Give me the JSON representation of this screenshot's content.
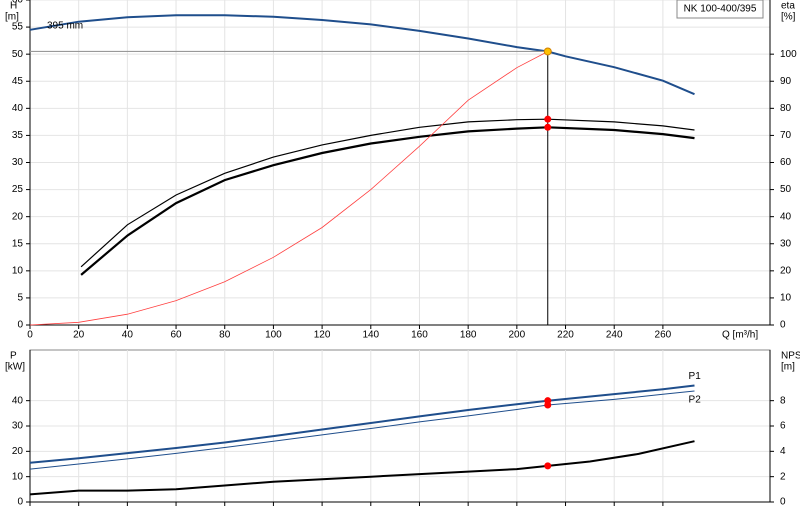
{
  "chart_data": [
    {
      "type": "line",
      "title": "NK 100-400/395",
      "ylabel": "H",
      "yunit": "[m]",
      "y2label": "eta",
      "y2unit": "[%]",
      "xlabel": "Q [m³/h]",
      "xlim": [
        0,
        304
      ],
      "xticks": [
        0,
        20,
        40,
        60,
        80,
        100,
        120,
        140,
        160,
        180,
        200,
        220,
        240,
        260
      ],
      "ylim": [
        0,
        60
      ],
      "yticks": [
        0,
        5,
        10,
        15,
        20,
        25,
        30,
        35,
        40,
        45,
        50,
        55,
        60
      ],
      "y2lim": [
        0,
        120
      ],
      "y2ticks": [
        0,
        10,
        20,
        30,
        40,
        50,
        60,
        70,
        80,
        90,
        100
      ],
      "grid": true,
      "series": [
        {
          "name": "395 mm",
          "color": "#1f4e8c",
          "width": 2,
          "x": [
            0,
            20,
            40,
            60,
            80,
            100,
            120,
            140,
            160,
            180,
            200,
            212.7,
            220,
            240,
            260,
            273
          ],
          "values": [
            54.5,
            56,
            56.8,
            57.2,
            57.2,
            56.9,
            56.3,
            55.5,
            54.3,
            52.9,
            51.3,
            50.5,
            49.6,
            47.6,
            45.1,
            42.6
          ]
        },
        {
          "color": "#000000",
          "width": 1.2,
          "axis": "y2",
          "x": [
            21,
            40,
            60,
            80,
            100,
            120,
            140,
            160,
            180,
            200,
            212.7,
            240,
            260,
            273
          ],
          "values": [
            21.5,
            37,
            48,
            56,
            62,
            66.5,
            70,
            73,
            75,
            75.8,
            76,
            75,
            73.5,
            72
          ]
        },
        {
          "color": "#000000",
          "width": 2.2,
          "axis": "y2",
          "x": [
            21,
            40,
            60,
            80,
            100,
            120,
            140,
            160,
            180,
            200,
            212.7,
            240,
            260,
            273
          ],
          "values": [
            18.5,
            33,
            45,
            53.5,
            59,
            63.5,
            67,
            69.5,
            71.5,
            72.5,
            73,
            72,
            70.5,
            69
          ]
        },
        {
          "color": "#ff4040",
          "width": 0.8,
          "x": [
            0,
            20,
            40,
            60,
            80,
            100,
            120,
            140,
            160,
            180,
            200,
            212.7
          ],
          "values": [
            0,
            0.5,
            2,
            4.5,
            8,
            12.5,
            18,
            25,
            33,
            41.5,
            47.5,
            50.5
          ]
        }
      ],
      "points": [
        {
          "x": 212.7,
          "y": 50.5,
          "color": "#ffc000",
          "guide": true
        },
        {
          "x": 212.7,
          "y": 76,
          "axis": "y2",
          "color": "#ff0000"
        },
        {
          "x": 212.7,
          "y": 73,
          "axis": "y2",
          "color": "#ff0000"
        }
      ]
    },
    {
      "type": "line",
      "ylabel": "P",
      "yunit": "[kW]",
      "y2label": "NPSH",
      "y2unit": "[m]",
      "xlim": [
        0,
        304
      ],
      "ylim": [
        0,
        60
      ],
      "yticks": [
        0,
        10,
        20,
        30,
        40
      ],
      "y2lim": [
        0,
        12
      ],
      "y2ticks": [
        0,
        2,
        4,
        6,
        8
      ],
      "grid": true,
      "series": [
        {
          "name": "P1",
          "color": "#1f4e8c",
          "width": 2,
          "x": [
            0,
            20,
            40,
            60,
            80,
            100,
            120,
            140,
            160,
            180,
            200,
            212.7,
            240,
            260,
            273
          ],
          "values": [
            15.5,
            17.3,
            19.3,
            21.3,
            23.5,
            26,
            28.6,
            31.2,
            33.8,
            36.3,
            38.6,
            40,
            42.6,
            44.5,
            46
          ]
        },
        {
          "name": "P2",
          "color": "#1f4e8c",
          "width": 1,
          "x": [
            0,
            20,
            40,
            60,
            80,
            100,
            120,
            140,
            160,
            180,
            200,
            212.7,
            240,
            260,
            273
          ],
          "values": [
            13,
            15,
            17,
            19.2,
            21.5,
            24,
            26.5,
            29,
            31.6,
            34,
            36.5,
            38.3,
            40.5,
            42.5,
            43.8
          ]
        },
        {
          "color": "#000000",
          "width": 2,
          "axis": "y2",
          "x": [
            0,
            20,
            40,
            60,
            80,
            100,
            120,
            140,
            160,
            180,
            200,
            212.7,
            230,
            250,
            273
          ],
          "values": [
            0.6,
            0.9,
            0.9,
            1.0,
            1.3,
            1.6,
            1.8,
            2.0,
            2.2,
            2.4,
            2.6,
            2.85,
            3.2,
            3.8,
            4.8
          ]
        }
      ],
      "points": [
        {
          "x": 212.7,
          "y": 40,
          "color": "#ff0000"
        },
        {
          "x": 212.7,
          "y": 38.3,
          "color": "#ff0000"
        },
        {
          "x": 212.7,
          "y": 2.85,
          "axis": "y2",
          "color": "#ff0000"
        }
      ]
    }
  ]
}
